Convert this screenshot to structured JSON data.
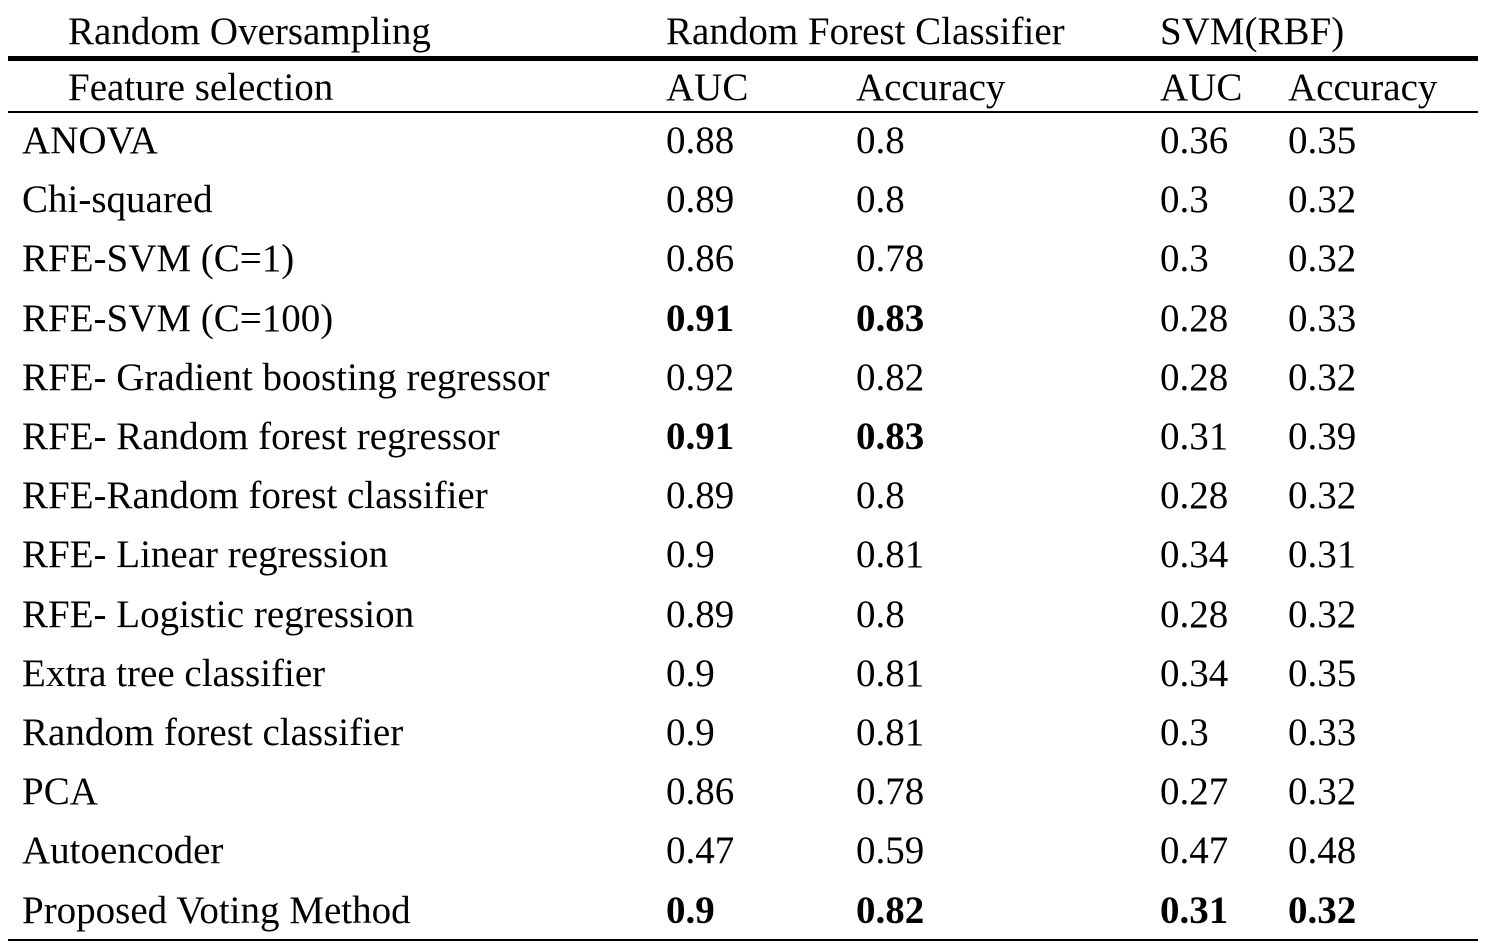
{
  "table": {
    "header_top": {
      "sampling": "Random Oversampling",
      "rf_group": "Random Forest Classifier",
      "svm_group": "SVM(RBF)"
    },
    "header_sub": {
      "feature_selection": "Feature selection",
      "rf_auc": "AUC",
      "rf_accuracy": "Accuracy",
      "svm_auc": "AUC",
      "svm_accuracy": "Accuracy"
    },
    "rows": [
      {
        "method": "ANOVA",
        "rf_auc": "0.88",
        "rf_acc": "0.8",
        "svm_auc": "0.36",
        "svm_acc": "0.35",
        "bold": []
      },
      {
        "method": "Chi-squared",
        "rf_auc": "0.89",
        "rf_acc": "0.8",
        "svm_auc": "0.3",
        "svm_acc": "0.32",
        "bold": []
      },
      {
        "method": "RFE-SVM (C=1)",
        "rf_auc": "0.86",
        "rf_acc": "0.78",
        "svm_auc": "0.3",
        "svm_acc": "0.32",
        "bold": []
      },
      {
        "method": "RFE-SVM (C=100)",
        "rf_auc": "0.91",
        "rf_acc": "0.83",
        "svm_auc": "0.28",
        "svm_acc": "0.33",
        "bold": [
          "rf_auc",
          "rf_acc"
        ]
      },
      {
        "method": "RFE- Gradient boosting regressor",
        "rf_auc": "0.92",
        "rf_acc": "0.82",
        "svm_auc": "0.28",
        "svm_acc": "0.32",
        "bold": []
      },
      {
        "method": "RFE- Random forest regressor",
        "rf_auc": "0.91",
        "rf_acc": "0.83",
        "svm_auc": "0.31",
        "svm_acc": "0.39",
        "bold": [
          "rf_auc",
          "rf_acc"
        ]
      },
      {
        "method": "RFE-Random forest classifier",
        "rf_auc": "0.89",
        "rf_acc": "0.8",
        "svm_auc": "0.28",
        "svm_acc": "0.32",
        "bold": []
      },
      {
        "method": "RFE- Linear regression",
        "rf_auc": "0.9",
        "rf_acc": "0.81",
        "svm_auc": "0.34",
        "svm_acc": "0.31",
        "bold": []
      },
      {
        "method": "RFE- Logistic regression",
        "rf_auc": "0.89",
        "rf_acc": "0.8",
        "svm_auc": "0.28",
        "svm_acc": "0.32",
        "bold": []
      },
      {
        "method": "Extra tree classifier",
        "rf_auc": "0.9",
        "rf_acc": "0.81",
        "svm_auc": "0.34",
        "svm_acc": "0.35",
        "bold": []
      },
      {
        "method": "Random forest classifier",
        "rf_auc": "0.9",
        "rf_acc": "0.81",
        "svm_auc": "0.3",
        "svm_acc": "0.33",
        "bold": []
      },
      {
        "method": "PCA",
        "rf_auc": "0.86",
        "rf_acc": "0.78",
        "svm_auc": "0.27",
        "svm_acc": "0.32",
        "bold": []
      },
      {
        "method": "Autoencoder",
        "rf_auc": "0.47",
        "rf_acc": "0.59",
        "svm_auc": "0.47",
        "svm_acc": "0.48",
        "bold": []
      },
      {
        "method": "Proposed Voting Method",
        "rf_auc": "0.9",
        "rf_acc": "0.82",
        "svm_auc": "0.31",
        "svm_acc": "0.32",
        "bold": [
          "rf_auc",
          "rf_acc",
          "svm_auc",
          "svm_acc"
        ]
      }
    ]
  }
}
